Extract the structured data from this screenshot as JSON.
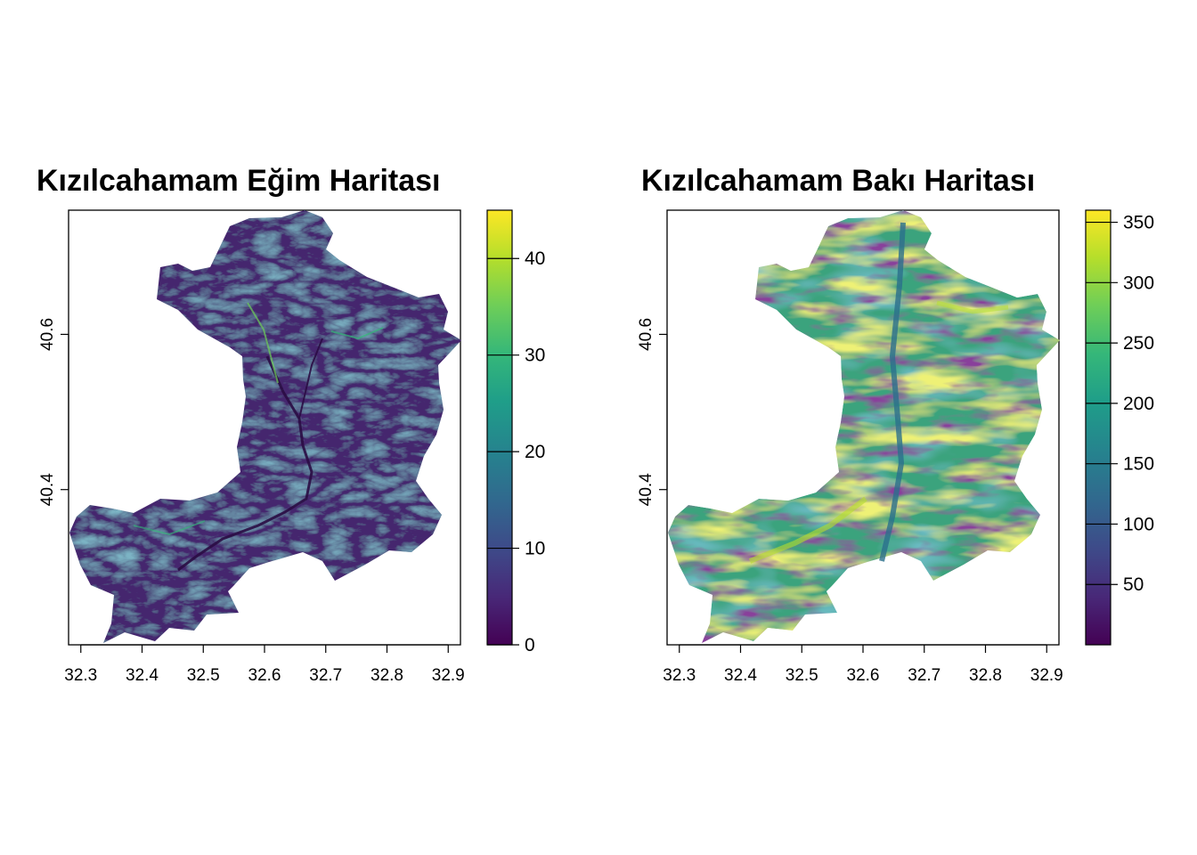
{
  "colors": {
    "viridis": [
      "#440154",
      "#482878",
      "#3e4a89",
      "#31688e",
      "#26828e",
      "#1f9e89",
      "#35b779",
      "#6ece58",
      "#b5de2b",
      "#fde725"
    ]
  },
  "panels": [
    {
      "title": "Kızılcahamam Eğim Haritası",
      "variable": "slope",
      "xlim": [
        32.28,
        32.92
      ],
      "ylim": [
        40.2,
        40.76
      ],
      "x_ticks": [
        "32.3",
        "32.4",
        "32.5",
        "32.6",
        "32.7",
        "32.8",
        "32.9"
      ],
      "x_tick_values": [
        32.3,
        32.4,
        32.5,
        32.6,
        32.7,
        32.8,
        32.9
      ],
      "y_ticks": [
        "40.4",
        "40.6"
      ],
      "y_tick_values": [
        40.4,
        40.6
      ],
      "legend": {
        "range": [
          0,
          45
        ],
        "ticks": [
          "0",
          "10",
          "20",
          "30",
          "40"
        ],
        "tick_values": [
          0,
          10,
          20,
          30,
          40
        ]
      }
    },
    {
      "title": "Kızılcahamam Bakı Haritası",
      "variable": "aspect",
      "xlim": [
        32.28,
        32.92
      ],
      "ylim": [
        40.2,
        40.76
      ],
      "x_ticks": [
        "32.3",
        "32.4",
        "32.5",
        "32.6",
        "32.7",
        "32.8",
        "32.9"
      ],
      "x_tick_values": [
        32.3,
        32.4,
        32.5,
        32.6,
        32.7,
        32.8,
        32.9
      ],
      "y_ticks": [
        "40.4",
        "40.6"
      ],
      "y_tick_values": [
        40.4,
        40.6
      ],
      "legend": {
        "range": [
          0,
          360
        ],
        "ticks": [
          "50",
          "100",
          "150",
          "200",
          "250",
          "300",
          "350"
        ],
        "tick_values": [
          50,
          100,
          150,
          200,
          250,
          300,
          350
        ]
      }
    }
  ]
}
